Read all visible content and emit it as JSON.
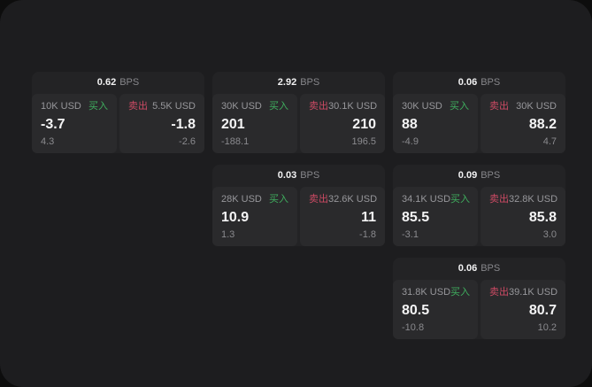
{
  "page": {
    "background": "#0d0d0d",
    "surface": "#1d1d1f",
    "card_bg": "#232325",
    "panel_bg": "#2a2a2c"
  },
  "labels": {
    "bps_unit": "BPS",
    "buy": "买入",
    "sell": "卖出"
  },
  "colors": {
    "buy": "#3fae5e",
    "sell": "#cc4a64"
  },
  "cards": [
    {
      "bps": "0.62",
      "row": 1,
      "col": 1,
      "buy": {
        "amount": "10K USD",
        "price": "-3.7",
        "delta": "4.3"
      },
      "sell": {
        "amount": "5.5K USD",
        "price": "-1.8",
        "delta": "-2.6"
      }
    },
    {
      "bps": "2.92",
      "row": 1,
      "col": 2,
      "buy": {
        "amount": "30K USD",
        "price": "201",
        "delta": "-188.1"
      },
      "sell": {
        "amount": "30.1K USD",
        "price": "210",
        "delta": "196.5"
      }
    },
    {
      "bps": "0.06",
      "row": 1,
      "col": 3,
      "buy": {
        "amount": "30K USD",
        "price": "88",
        "delta": "-4.9"
      },
      "sell": {
        "amount": "30K USD",
        "price": "88.2",
        "delta": "4.7"
      }
    },
    {
      "bps": "0.03",
      "row": 2,
      "col": 2,
      "buy": {
        "amount": "28K USD",
        "price": "10.9",
        "delta": "1.3"
      },
      "sell": {
        "amount": "32.6K USD",
        "price": "11",
        "delta": "-1.8"
      }
    },
    {
      "bps": "0.09",
      "row": 2,
      "col": 3,
      "buy": {
        "amount": "34.1K USD",
        "price": "85.5",
        "delta": "-3.1"
      },
      "sell": {
        "amount": "32.8K USD",
        "price": "85.8",
        "delta": "3.0"
      }
    },
    {
      "bps": "0.06",
      "row": 3,
      "col": 3,
      "buy": {
        "amount": "31.8K USD",
        "price": "80.5",
        "delta": "-10.8"
      },
      "sell": {
        "amount": "39.1K USD",
        "price": "80.7",
        "delta": "10.2"
      }
    }
  ]
}
